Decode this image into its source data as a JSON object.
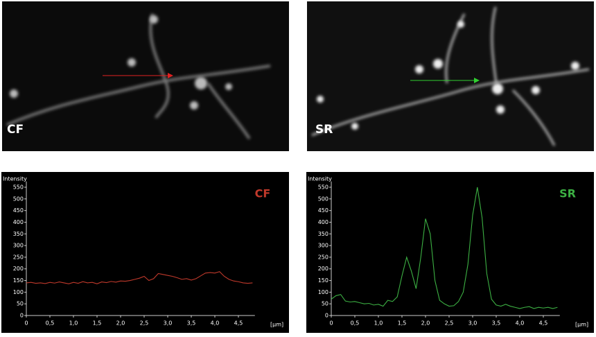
{
  "images": [
    {
      "label": "CF"
    },
    {
      "label": "SR"
    }
  ],
  "chart_data": [
    {
      "type": "line",
      "title": "CF",
      "ylabel": "Intensity",
      "xlabel": "[µm]",
      "color": "#c0392b",
      "x": [
        0,
        0.1,
        0.2,
        0.3,
        0.4,
        0.5,
        0.6,
        0.7,
        0.8,
        0.9,
        1.0,
        1.1,
        1.2,
        1.3,
        1.4,
        1.5,
        1.6,
        1.7,
        1.8,
        1.9,
        2.0,
        2.1,
        2.2,
        2.3,
        2.4,
        2.5,
        2.6,
        2.7,
        2.8,
        2.9,
        3.0,
        3.1,
        3.2,
        3.3,
        3.4,
        3.5,
        3.6,
        3.7,
        3.8,
        3.9,
        4.0,
        4.1,
        4.2,
        4.3,
        4.4,
        4.5,
        4.6,
        4.7,
        4.8
      ],
      "values": [
        140,
        142,
        138,
        140,
        137,
        142,
        139,
        144,
        140,
        136,
        142,
        138,
        145,
        140,
        142,
        136,
        144,
        141,
        146,
        143,
        148,
        147,
        150,
        155,
        160,
        168,
        150,
        158,
        180,
        176,
        172,
        168,
        162,
        155,
        158,
        152,
        158,
        170,
        182,
        184,
        182,
        188,
        168,
        155,
        148,
        145,
        140,
        138,
        140
      ],
      "xlim": [
        0,
        4.85
      ],
      "ylim": [
        0,
        575
      ],
      "xticks": [
        0,
        {
          "value": 0.5,
          "label": "0,5"
        },
        {
          "value": 1,
          "label": "1,0"
        },
        {
          "value": 1.5,
          "label": "1,5"
        },
        {
          "value": 2,
          "label": "2,0"
        },
        {
          "value": 2.5,
          "label": "2,5"
        },
        {
          "value": 3,
          "label": "3,0"
        },
        {
          "value": 3.5,
          "label": "3,5"
        },
        {
          "value": 4,
          "label": "4,0"
        },
        {
          "value": 4.5,
          "label": "4,5"
        }
      ],
      "yticks": [
        0,
        50,
        100,
        150,
        200,
        250,
        300,
        350,
        400,
        450,
        500,
        550
      ]
    },
    {
      "type": "line",
      "title": "SR",
      "ylabel": "Intensity",
      "xlabel": "[µm]",
      "color": "#3cb043",
      "x": [
        0,
        0.1,
        0.2,
        0.3,
        0.4,
        0.5,
        0.6,
        0.7,
        0.8,
        0.9,
        1.0,
        1.1,
        1.2,
        1.3,
        1.4,
        1.5,
        1.6,
        1.7,
        1.8,
        1.9,
        2.0,
        2.1,
        2.2,
        2.3,
        2.4,
        2.5,
        2.6,
        2.7,
        2.8,
        2.9,
        3.0,
        3.1,
        3.2,
        3.3,
        3.4,
        3.5,
        3.6,
        3.7,
        3.8,
        3.9,
        4.0,
        4.1,
        4.2,
        4.3,
        4.4,
        4.5,
        4.6,
        4.7,
        4.8
      ],
      "values": [
        70,
        85,
        90,
        62,
        58,
        60,
        55,
        50,
        52,
        45,
        48,
        40,
        65,
        60,
        80,
        170,
        250,
        190,
        115,
        250,
        415,
        350,
        150,
        65,
        50,
        40,
        42,
        60,
        100,
        220,
        430,
        550,
        420,
        180,
        70,
        45,
        40,
        48,
        40,
        35,
        30,
        35,
        38,
        30,
        35,
        32,
        35,
        30,
        35
      ],
      "xlim": [
        0,
        4.85
      ],
      "ylim": [
        0,
        575
      ],
      "xticks": [
        0,
        {
          "value": 0.5,
          "label": "0,5"
        },
        {
          "value": 1,
          "label": "1,0"
        },
        {
          "value": 1.5,
          "label": "1,5"
        },
        {
          "value": 2,
          "label": "2,0"
        },
        {
          "value": 2.5,
          "label": "2,5"
        },
        {
          "value": 3,
          "label": "3,0"
        },
        {
          "value": 3.5,
          "label": "3,5"
        },
        {
          "value": 4,
          "label": "4,0"
        },
        {
          "value": 4.5,
          "label": "4,5"
        }
      ],
      "yticks": [
        0,
        50,
        100,
        150,
        200,
        250,
        300,
        350,
        400,
        450,
        500,
        550
      ]
    }
  ]
}
